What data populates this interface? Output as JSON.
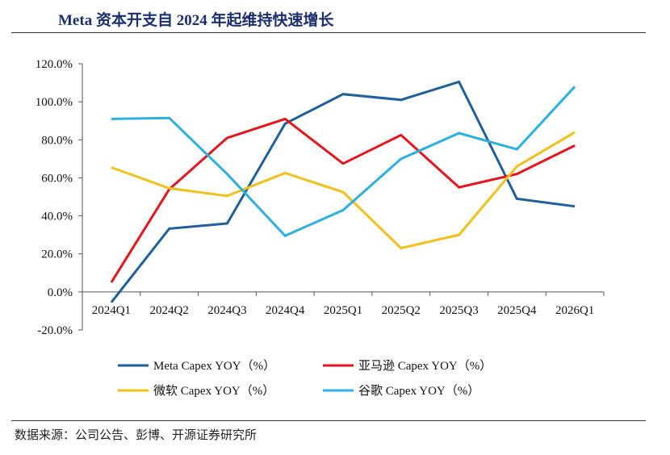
{
  "title": "Meta 资本开支自 2024 年起维持快速增长",
  "source": "数据来源：公司公告、彭博、开源证券研究所",
  "chart_data": {
    "type": "line",
    "title": "Meta 资本开支自 2024 年起维持快速增长",
    "xlabel": "",
    "ylabel": "",
    "categories": [
      "2024Q1",
      "2024Q2",
      "2024Q3",
      "2024Q4",
      "2025Q1",
      "2025Q2",
      "2025Q3",
      "2025Q4",
      "2026Q1"
    ],
    "ylim": [
      -20,
      120
    ],
    "yticks": [
      -20,
      0,
      20,
      40,
      60,
      80,
      100,
      120
    ],
    "ytick_labels": [
      "-20.0%",
      "0.0%",
      "20.0%",
      "40.0%",
      "60.0%",
      "80.0%",
      "100.0%",
      "120.0%"
    ],
    "grid": false,
    "legend_position": "bottom",
    "series": [
      {
        "name": "Meta Capex YOY（%）",
        "color": "#1f5f9e",
        "values": [
          -5.5,
          33.3,
          36.0,
          88.5,
          104.0,
          101.0,
          110.5,
          49.0,
          45.0
        ]
      },
      {
        "name": "亚马逊 Capex YOY（%）",
        "color": "#e8141c",
        "values": [
          5.0,
          54.0,
          81.0,
          91.0,
          67.5,
          82.5,
          55.0,
          62.0,
          77.0
        ]
      },
      {
        "name": "微软 Capex YOY（%）",
        "color": "#f2c01a",
        "values": [
          65.5,
          54.5,
          50.5,
          62.5,
          52.5,
          23.0,
          30.0,
          66.0,
          84.0
        ]
      },
      {
        "name": "谷歌 Capex YOY（%）",
        "color": "#2bb0e0",
        "values": [
          91.0,
          91.5,
          62.0,
          29.5,
          43.0,
          70.0,
          83.5,
          75.0,
          108.0
        ]
      }
    ]
  }
}
